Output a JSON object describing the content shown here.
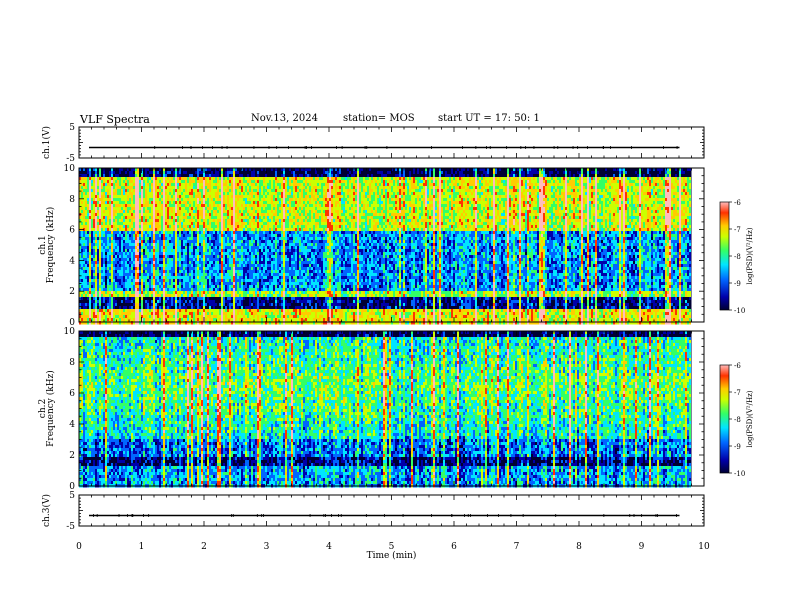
{
  "header": {
    "title": "VLF Spectra",
    "date": "Nov.13, 2024",
    "station": "station= MOS",
    "start": "start UT =  17: 50: 1"
  },
  "chart_data": [
    {
      "type": "line",
      "panel": "ch.1 waveform",
      "ylabel": "ch.1(V)",
      "ylim": [
        -5,
        5
      ],
      "yticks": [
        "5",
        "-5"
      ],
      "xlim": [
        0,
        10
      ],
      "series": [
        {
          "values_description_free": true,
          "x": [
            0,
            9.8
          ],
          "y": [
            0,
            0
          ]
        }
      ]
    },
    {
      "type": "heatmap",
      "panel": "ch.1 spectrogram",
      "ylabel": "ch.1\nFrequency (kHz)",
      "ylim": [
        0,
        10
      ],
      "yticks": [
        "0",
        "2",
        "4",
        "6",
        "8",
        "10"
      ],
      "xlim": [
        0,
        9.8
      ],
      "colorbar": {
        "label": "log(PSD)(V²/Hz)",
        "range": [
          -10,
          -6
        ],
        "ticks": [
          "-6",
          "-7",
          "-8",
          "-9",
          "-10"
        ]
      }
    },
    {
      "type": "heatmap",
      "panel": "ch.2 spectrogram",
      "ylabel": "ch.2\nFrequency (kHz)",
      "ylim": [
        0,
        10
      ],
      "yticks": [
        "0",
        "2",
        "4",
        "6",
        "8",
        "10"
      ],
      "xlim": [
        0,
        9.8
      ],
      "colorbar": {
        "label": "log(PSD)(V²/Hz)",
        "range": [
          -10,
          -6
        ],
        "ticks": [
          "-6",
          "-7",
          "-8",
          "-9",
          "-10"
        ]
      }
    },
    {
      "type": "line",
      "panel": "ch.3 waveform",
      "ylabel": "ch.3(V)",
      "ylim": [
        -5,
        5
      ],
      "yticks": [
        "5",
        "-5"
      ],
      "xlim": [
        0,
        10
      ],
      "series": [
        {
          "x": [
            0,
            9.8
          ],
          "y": [
            0,
            0
          ]
        }
      ]
    }
  ],
  "xaxis": {
    "label": "Time (min)",
    "ticks": [
      "0",
      "1",
      "2",
      "3",
      "4",
      "5",
      "6",
      "7",
      "8",
      "9",
      "10"
    ],
    "range": [
      0,
      10
    ]
  },
  "colors": {
    "cmap": [
      "#000033",
      "#0000aa",
      "#0066ff",
      "#00e5ff",
      "#33ff66",
      "#ccff00",
      "#ffcc00",
      "#ff3300",
      "#ffbbbb"
    ]
  }
}
